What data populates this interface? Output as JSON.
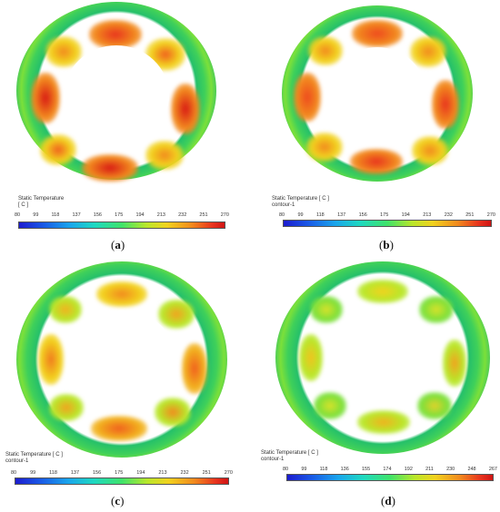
{
  "panels": [
    {
      "id": "a",
      "legend_title_lines": [
        "Static Temperature",
        "[ C ]"
      ],
      "ticks": [
        "80",
        "99",
        "118",
        "137",
        "156",
        "175",
        "194",
        "213",
        "232",
        "251",
        "270"
      ],
      "caption_prefix": "(",
      "caption_letter": "a",
      "caption_suffix": ")"
    },
    {
      "id": "b",
      "legend_title_lines": [
        "Static Temperature [ C ]",
        "contour-1"
      ],
      "ticks": [
        "80",
        "99",
        "118",
        "137",
        "156",
        "175",
        "194",
        "213",
        "232",
        "251",
        "270"
      ],
      "caption_prefix": "(",
      "caption_letter": "b",
      "caption_suffix": ")"
    },
    {
      "id": "c",
      "legend_title_lines": [
        "Static Temperature [ C ]",
        "contour-1"
      ],
      "ticks": [
        "80",
        "99",
        "118",
        "137",
        "156",
        "175",
        "194",
        "213",
        "232",
        "251",
        "270"
      ],
      "caption_prefix": "(",
      "caption_letter": "c",
      "caption_suffix": ")"
    },
    {
      "id": "d",
      "legend_title_lines": [
        "Static Temperature [ C ]",
        "contour-1"
      ],
      "ticks": [
        "80",
        "99",
        "118",
        "136",
        "155",
        "174",
        "192",
        "211",
        "230",
        "248",
        "267"
      ],
      "caption_prefix": "(",
      "caption_letter": "d",
      "caption_suffix": ")"
    }
  ],
  "colors": {
    "cold": "#1a2fc8",
    "mid": "#3fd05a",
    "hot": "#e8341e"
  }
}
